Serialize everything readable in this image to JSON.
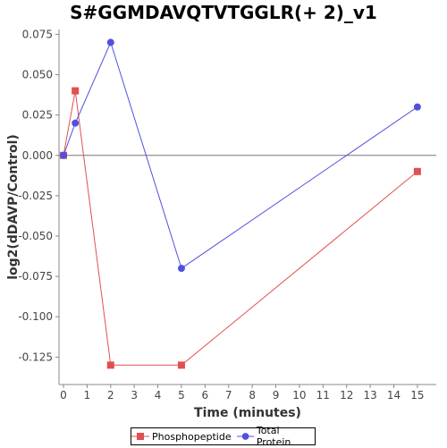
{
  "chart_data": {
    "type": "line",
    "title": "S#GGMDAVQTVTGGLR(+ 2)_v1",
    "xlabel": "Time (minutes)",
    "ylabel": "log2(dDAVP/Control)",
    "xlim": [
      0,
      15.8
    ],
    "ylim": [
      -0.142,
      0.078
    ],
    "x_ticks": [
      0,
      1,
      2,
      3,
      4,
      5,
      6,
      7,
      8,
      9,
      10,
      11,
      12,
      13,
      14,
      15
    ],
    "y_ticks": [
      0.075,
      0.05,
      0.025,
      0.0,
      -0.025,
      -0.05,
      -0.075,
      -0.1,
      -0.125
    ],
    "y_tick_labels": [
      "0.075",
      "0.050",
      "0.025",
      "0.000",
      "-0.025",
      "-0.050",
      "-0.075",
      "-0.100",
      "-0.125"
    ],
    "zero_line": true,
    "grid": false,
    "legend_position": "bottom",
    "series": [
      {
        "name": "Phosphopeptide",
        "color": "#e05050",
        "marker": "square",
        "x": [
          0,
          0.5,
          2,
          5,
          15
        ],
        "y": [
          0.0,
          0.04,
          -0.13,
          -0.13,
          -0.01
        ]
      },
      {
        "name": "Total Protein",
        "color": "#5050e0",
        "marker": "circle",
        "x": [
          0,
          0.5,
          2,
          5,
          15
        ],
        "y": [
          0.0,
          0.02,
          0.07,
          -0.07,
          0.03
        ]
      }
    ]
  }
}
